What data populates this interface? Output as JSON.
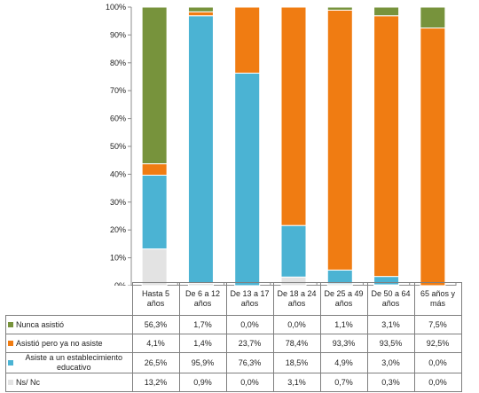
{
  "chart_data": {
    "type": "bar",
    "stacked": true,
    "normalized_percent": true,
    "categories": [
      "Hasta 5 años",
      "De 6 a 12 años",
      "De 13 a 17 años",
      "De 18 a 24 años",
      "De 25 a 49 años",
      "De 50 a 64 años",
      "65 años y más"
    ],
    "series": [
      {
        "name": "Nunca asistió",
        "color": "#77933c",
        "values": [
          56.3,
          1.7,
          0.0,
          0.0,
          1.1,
          3.1,
          7.5
        ],
        "labels": [
          "56,3%",
          "1,7%",
          "0,0%",
          "0,0%",
          "1,1%",
          "3,1%",
          "7,5%"
        ]
      },
      {
        "name": "Asistió pero ya no asiste",
        "color": "#f07c12",
        "values": [
          4.1,
          1.4,
          23.7,
          78.4,
          93.3,
          93.5,
          92.5
        ],
        "labels": [
          "4,1%",
          "1,4%",
          "23,7%",
          "78,4%",
          "93,3%",
          "93,5%",
          "92,5%"
        ]
      },
      {
        "name": "Asiste a un establecimiento educativo",
        "color": "#4bb3d3",
        "values": [
          26.5,
          95.9,
          76.3,
          18.5,
          4.9,
          3.0,
          0.0
        ],
        "labels": [
          "26,5%",
          "95,9%",
          "76,3%",
          "18,5%",
          "4,9%",
          "3,0%",
          "0,0%"
        ]
      },
      {
        "name": "Ns/ Nc",
        "color": "#e3e3e3",
        "values": [
          13.2,
          0.9,
          0.0,
          3.1,
          0.7,
          0.3,
          0.0
        ],
        "labels": [
          "13,2%",
          "0,9%",
          "0,0%",
          "3,1%",
          "0,7%",
          "0,3%",
          "0,0%"
        ]
      }
    ],
    "stack_order_bottom_to_top": [
      "Ns/ Nc",
      "Asiste a un establecimiento educativo",
      "Asistió pero ya no asiste",
      "Nunca asistió"
    ],
    "ylim": [
      0,
      100
    ],
    "yticks": [
      "0%",
      "10%",
      "20%",
      "30%",
      "40%",
      "50%",
      "60%",
      "70%",
      "80%",
      "90%",
      "100%"
    ],
    "grid": false,
    "legend": "data table below chart"
  }
}
